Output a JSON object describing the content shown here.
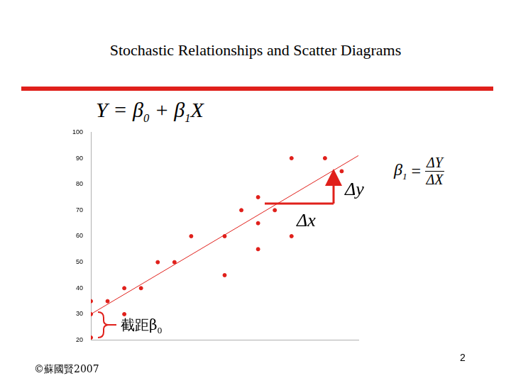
{
  "title": "Stochastic Relationships and Scatter Diagrams",
  "chart_data": {
    "type": "scatter",
    "equation": "Y = β0 + β1X",
    "slope_formula": {
      "lhs": "β1",
      "numerator": "ΔY",
      "denominator": "ΔX"
    },
    "delta_x": "Δx",
    "delta_y": "Δy",
    "intercept_label": "截距β0",
    "xlim": [
      0,
      16
    ],
    "ylim": [
      20,
      100
    ],
    "yticks": [
      20,
      30,
      40,
      50,
      60,
      70,
      80,
      90,
      100
    ],
    "grid": false,
    "tick_labels": "y",
    "series": [
      {
        "type": "scatter",
        "color": "#e0201b",
        "marker": "circle",
        "x": [
          0,
          0,
          0,
          1,
          2,
          2,
          3,
          4,
          5,
          6,
          8,
          8,
          9,
          10,
          10,
          10,
          11,
          12,
          12,
          14,
          15
        ],
        "values": [
          35,
          30,
          21,
          35,
          40,
          30,
          40,
          50,
          50,
          60,
          60,
          45,
          70,
          75,
          65,
          55,
          70,
          90,
          60,
          90,
          85
        ]
      },
      {
        "type": "line",
        "color": "#e0201b",
        "line_style": "solid",
        "x": [
          0,
          16
        ],
        "values": [
          30,
          91
        ]
      }
    ]
  },
  "page_number": "2",
  "footer": "©蘇國賢2007"
}
